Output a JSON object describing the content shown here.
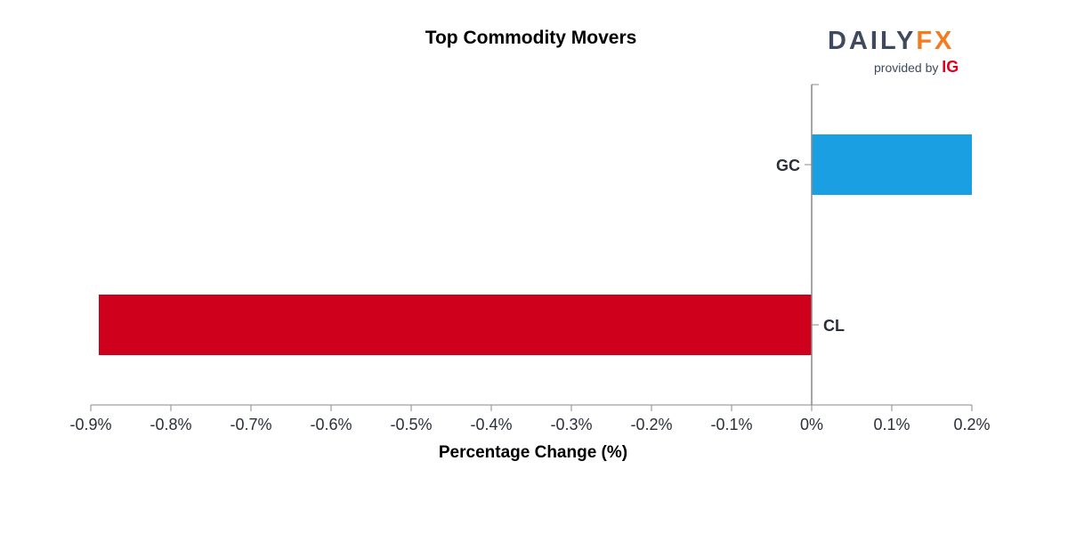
{
  "chart_data": {
    "type": "bar",
    "orientation": "horizontal",
    "title": "Top Commodity Movers",
    "xlabel": "Percentage Change (%)",
    "ylabel": "",
    "categories": [
      "GC",
      "CL"
    ],
    "values": [
      0.2,
      -0.89
    ],
    "bar_colors": [
      "#1a9fe3",
      "#cf001b"
    ],
    "xlim": [
      -0.9,
      0.2
    ],
    "xticks": [
      -0.9,
      -0.8,
      -0.7,
      -0.6,
      -0.5,
      -0.4,
      -0.3,
      -0.2,
      -0.1,
      0,
      0.1,
      0.2
    ],
    "xtick_labels": [
      "-0.9%",
      "-0.8%",
      "-0.7%",
      "-0.6%",
      "-0.5%",
      "-0.4%",
      "-0.3%",
      "-0.2%",
      "-0.1%",
      "0%",
      "0.1%",
      "0.2%"
    ],
    "grid": false,
    "legend": "none"
  },
  "branding": {
    "logo_part1": "DAILY",
    "logo_part2": "FX",
    "provided_by": "provided by",
    "provider": "IG"
  }
}
